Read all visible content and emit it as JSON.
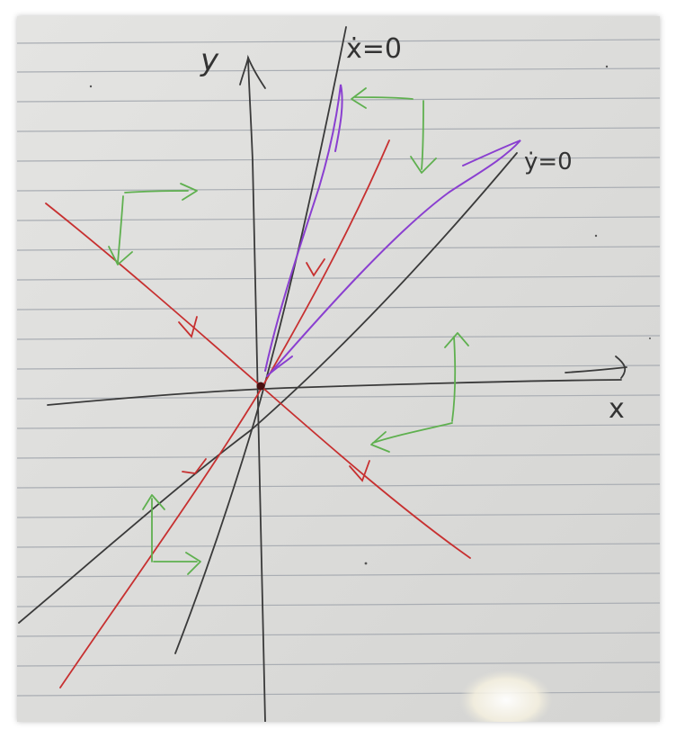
{
  "labels": {
    "y_axis": "y",
    "x_axis": "x",
    "xdot_nullcline": "ẋ=0",
    "ydot_nullcline": "ẏ=0"
  },
  "colors": {
    "paper": "#dcdcda",
    "ruled_line": "#a9adb3",
    "pencil": "#3a3a3a",
    "red_line": "#c73030",
    "purple_line": "#8a3fd0",
    "green_arrow": "#5fb04f"
  },
  "elements": {
    "axes": [
      "x-axis",
      "y-axis"
    ],
    "nullclines": [
      "xdot-nullcline",
      "ydot-nullcline"
    ],
    "eigenlines": [
      "stable-eigenline",
      "unstable-eigenline"
    ],
    "trajectories": [
      "purple-trajectory"
    ],
    "direction_arrows": 4
  }
}
